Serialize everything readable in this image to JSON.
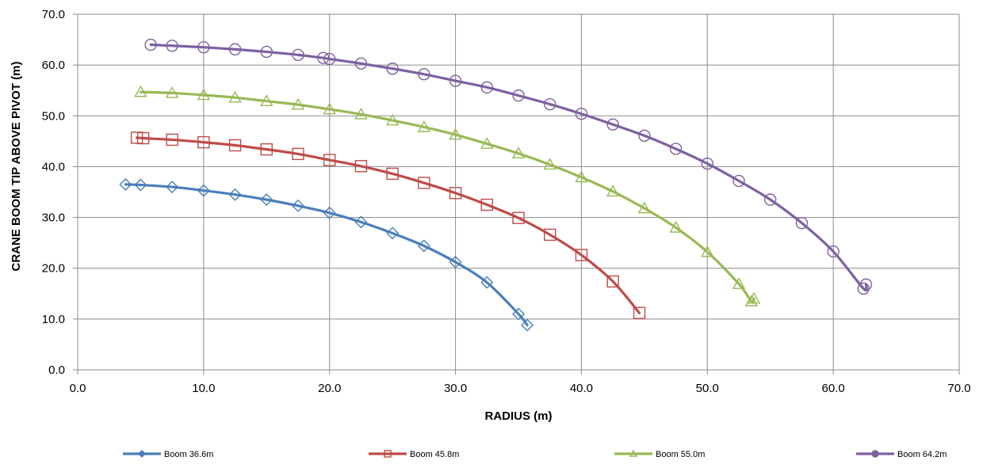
{
  "chart_data": {
    "type": "scatter",
    "xlabel": "RADIUS (m)",
    "ylabel": "CRANE BOOM TIP ABOVE PIVOT (m)",
    "xlim": [
      0,
      70
    ],
    "ylim": [
      0,
      70
    ],
    "xticks": [
      "0.0",
      "10.0",
      "20.0",
      "30.0",
      "40.0",
      "50.0",
      "60.0",
      "70.0"
    ],
    "yticks": [
      "0.0",
      "10.0",
      "20.0",
      "30.0",
      "40.0",
      "50.0",
      "60.0",
      "70.0"
    ],
    "grid": true,
    "legend": "bottom",
    "series": [
      {
        "name": "Boom 36.6m",
        "color": "#4a7ebb",
        "marker": "diamond",
        "x": [
          3.8,
          5.0,
          7.5,
          10.0,
          12.5,
          15.0,
          17.5,
          20.0,
          22.5,
          25.0,
          27.5,
          30.0,
          32.5,
          35.0,
          35.7
        ],
        "y": [
          36.5,
          36.4,
          36.0,
          35.3,
          34.5,
          33.5,
          32.3,
          30.9,
          29.1,
          26.9,
          24.4,
          21.2,
          17.2,
          11.0,
          8.8
        ]
      },
      {
        "name": "Boom 45.8m",
        "color": "#be4b48",
        "marker": "square",
        "x": [
          4.7,
          5.2,
          7.5,
          10.0,
          12.5,
          15.0,
          17.5,
          20.0,
          22.5,
          25.0,
          27.5,
          30.0,
          32.5,
          35.0,
          37.5,
          40.0,
          42.5,
          44.6
        ],
        "y": [
          45.7,
          45.6,
          45.3,
          44.8,
          44.2,
          43.4,
          42.5,
          41.3,
          40.1,
          38.6,
          36.8,
          34.8,
          32.5,
          29.9,
          26.6,
          22.6,
          17.4,
          11.2
        ]
      },
      {
        "name": "Boom 55.0m",
        "color": "#98b954",
        "marker": "triangle",
        "x": [
          5.0,
          7.5,
          10.0,
          12.5,
          15.0,
          17.5,
          20.0,
          22.5,
          25.0,
          27.5,
          30.0,
          32.5,
          35.0,
          37.5,
          40.0,
          42.5,
          45.0,
          47.5,
          50.0,
          52.5,
          53.5,
          53.7
        ],
        "y": [
          54.7,
          54.5,
          54.1,
          53.6,
          52.9,
          52.2,
          51.3,
          50.3,
          49.1,
          47.8,
          46.3,
          44.5,
          42.6,
          40.4,
          37.9,
          35.1,
          31.8,
          28.0,
          23.2,
          16.9,
          13.5,
          14.0
        ]
      },
      {
        "name": "Boom 64.2m",
        "color": "#7d60a0",
        "marker": "circle",
        "x": [
          5.8,
          7.5,
          10.0,
          12.5,
          15.0,
          17.5,
          19.5,
          20.0,
          22.5,
          25.0,
          27.5,
          30.0,
          32.5,
          35.0,
          37.5,
          40.0,
          42.5,
          45.0,
          47.5,
          50.0,
          52.5,
          55.0,
          57.5,
          60.0,
          62.4,
          62.6
        ],
        "y": [
          64.0,
          63.8,
          63.5,
          63.1,
          62.6,
          62.0,
          61.4,
          61.2,
          60.3,
          59.3,
          58.2,
          56.9,
          55.6,
          54.0,
          52.3,
          50.4,
          48.3,
          46.1,
          43.5,
          40.6,
          37.2,
          33.5,
          28.9,
          23.3,
          16.0,
          16.8
        ]
      }
    ]
  }
}
